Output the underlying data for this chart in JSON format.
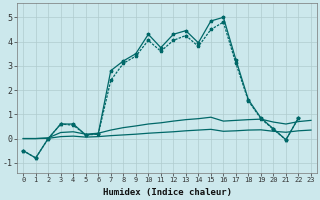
{
  "title": "",
  "xlabel": "Humidex (Indice chaleur)",
  "bg_color": "#cce8ec",
  "grid_major_color": "#b8d8dc",
  "grid_minor_color": "#d4eaed",
  "line_color": "#006868",
  "xlim": [
    -0.5,
    23.5
  ],
  "ylim": [
    -1.4,
    5.6
  ],
  "xticks": [
    0,
    1,
    2,
    3,
    4,
    5,
    6,
    7,
    8,
    9,
    10,
    11,
    12,
    13,
    14,
    15,
    16,
    17,
    18,
    19,
    20,
    21,
    22,
    23
  ],
  "yticks": [
    -1,
    0,
    1,
    2,
    3,
    4,
    5
  ],
  "s1_x": [
    0,
    1,
    2,
    3,
    4,
    5,
    6,
    7,
    8,
    9,
    10,
    11,
    12,
    13,
    14,
    15,
    16,
    17,
    18,
    19,
    20,
    21,
    22,
    23
  ],
  "s1_y": [
    -0.5,
    -0.8,
    0.0,
    0.6,
    0.6,
    0.15,
    0.2,
    2.8,
    3.2,
    3.5,
    4.3,
    3.75,
    4.3,
    4.45,
    3.95,
    4.85,
    5.0,
    3.25,
    1.6,
    0.85,
    0.4,
    -0.05,
    0.85,
    null
  ],
  "s2_x": [
    0,
    1,
    2,
    3,
    4,
    5,
    6,
    7,
    8,
    9,
    10,
    11,
    12,
    13,
    14,
    15,
    16,
    17,
    18,
    19,
    20,
    21,
    22,
    23
  ],
  "s2_y": [
    -0.5,
    -0.8,
    0.0,
    0.6,
    0.55,
    0.15,
    0.18,
    2.4,
    3.1,
    3.4,
    4.05,
    3.6,
    4.05,
    4.25,
    3.8,
    4.5,
    4.8,
    3.1,
    1.55,
    0.82,
    0.38,
    -0.05,
    0.85,
    null
  ],
  "s3_x": [
    0,
    1,
    2,
    3,
    4,
    5,
    6,
    7,
    8,
    9,
    10,
    11,
    12,
    13,
    14,
    15,
    16,
    17,
    18,
    19,
    20,
    21,
    22,
    23
  ],
  "s3_y": [
    0.0,
    0.0,
    0.03,
    0.25,
    0.28,
    0.18,
    0.22,
    0.35,
    0.45,
    0.52,
    0.6,
    0.65,
    0.72,
    0.78,
    0.82,
    0.88,
    0.72,
    0.75,
    0.78,
    0.8,
    0.68,
    0.6,
    0.7,
    0.75
  ],
  "s4_x": [
    0,
    1,
    2,
    3,
    4,
    5,
    6,
    7,
    8,
    9,
    10,
    11,
    12,
    13,
    14,
    15,
    16,
    17,
    18,
    19,
    20,
    21,
    22,
    23
  ],
  "s4_y": [
    0.0,
    0.0,
    0.01,
    0.08,
    0.1,
    0.06,
    0.08,
    0.12,
    0.15,
    0.18,
    0.22,
    0.25,
    0.28,
    0.32,
    0.35,
    0.38,
    0.3,
    0.32,
    0.35,
    0.36,
    0.3,
    0.26,
    0.32,
    0.35
  ]
}
